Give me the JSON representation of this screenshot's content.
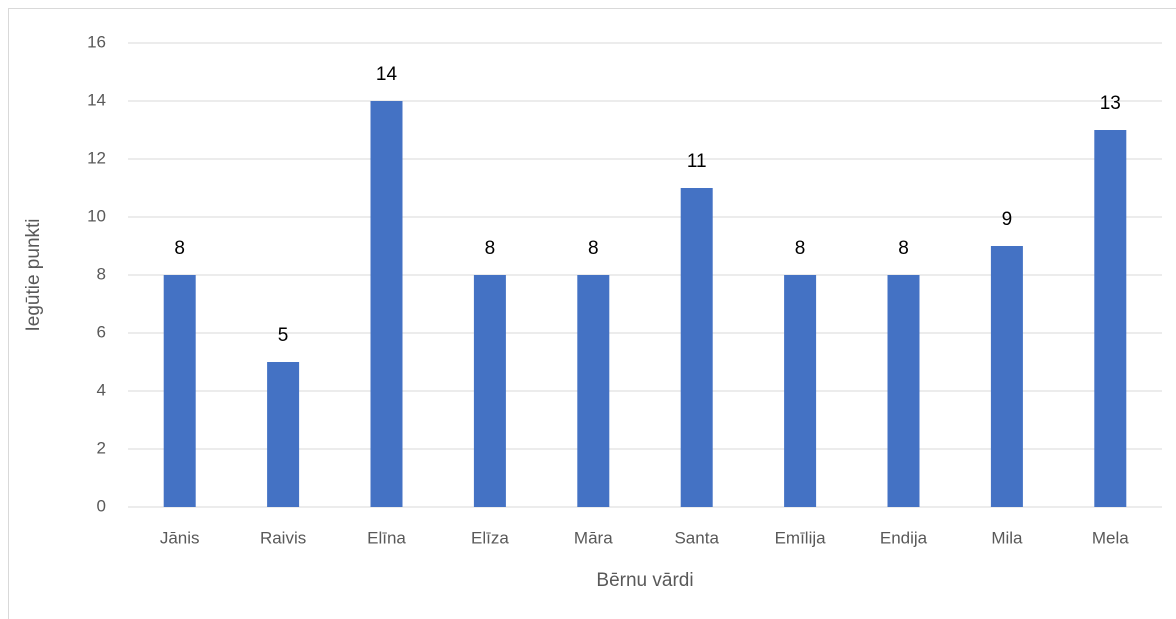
{
  "chart_data": {
    "type": "bar",
    "x_label": "Bērnu vārdi",
    "y_label": "Iegūtie punkti",
    "categories": [
      "Jānis",
      "Raivis",
      "Elīna",
      "Elīza",
      "Māra",
      "Santa",
      "Emīlija",
      "Endija",
      "Mila",
      "Mela"
    ],
    "values": [
      8,
      5,
      14,
      8,
      8,
      11,
      8,
      8,
      9,
      13
    ],
    "color": "#4472c4",
    "ylim": [
      0,
      16
    ],
    "yticks": [
      0,
      2,
      4,
      6,
      8,
      10,
      12,
      14,
      16
    ],
    "grid": true
  }
}
